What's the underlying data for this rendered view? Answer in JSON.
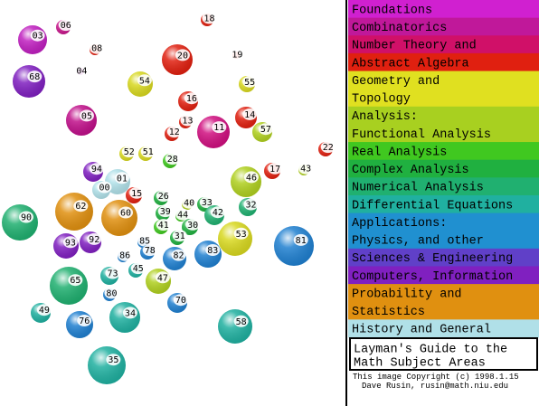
{
  "nodes": [
    {
      "label": "03",
      "color": "#c020c0"
    },
    {
      "label": "06",
      "color": "#c8188c"
    },
    {
      "label": "04",
      "color": "#d020d0"
    },
    {
      "label": "05",
      "color": "#c0108a"
    },
    {
      "label": "08",
      "color": "#e02010"
    },
    {
      "label": "18",
      "color": "#e02010"
    },
    {
      "label": "20",
      "color": "#e02010"
    },
    {
      "label": "19",
      "color": "#e02010"
    },
    {
      "label": "54",
      "color": "#d8d820"
    },
    {
      "label": "55",
      "color": "#d8d820"
    },
    {
      "label": "16",
      "color": "#e02010"
    },
    {
      "label": "13",
      "color": "#e02010"
    },
    {
      "label": "12",
      "color": "#e02010"
    },
    {
      "label": "11",
      "color": "#d01080"
    },
    {
      "label": "14",
      "color": "#e02010"
    },
    {
      "label": "57",
      "color": "#b0d020"
    },
    {
      "label": "22",
      "color": "#e02010"
    },
    {
      "label": "68",
      "color": "#8020c0"
    },
    {
      "label": "94",
      "color": "#8020c0"
    },
    {
      "label": "52",
      "color": "#d8d820"
    },
    {
      "label": "51",
      "color": "#d8d820"
    },
    {
      "label": "28",
      "color": "#40c820"
    },
    {
      "label": "01",
      "color": "#b0e0e8"
    },
    {
      "label": "00",
      "color": "#b0e0e8"
    },
    {
      "label": "15",
      "color": "#e02010"
    },
    {
      "label": "17",
      "color": "#e02010"
    },
    {
      "label": "43",
      "color": "#b0d020"
    },
    {
      "label": "46",
      "color": "#b0d020"
    },
    {
      "label": "26",
      "color": "#20b040"
    },
    {
      "label": "40",
      "color": "#b0d020"
    },
    {
      "label": "33",
      "color": "#20b040"
    },
    {
      "label": "32",
      "color": "#20b070"
    },
    {
      "label": "39",
      "color": "#20b040"
    },
    {
      "label": "44",
      "color": "#40c820"
    },
    {
      "label": "42",
      "color": "#20b070"
    },
    {
      "label": "62",
      "color": "#e09010"
    },
    {
      "label": "60",
      "color": "#e09010"
    },
    {
      "label": "90",
      "color": "#20b070"
    },
    {
      "label": "41",
      "color": "#40c820"
    },
    {
      "label": "30",
      "color": "#20b040"
    },
    {
      "label": "53",
      "color": "#d8d820"
    },
    {
      "label": "81",
      "color": "#2080d0"
    },
    {
      "label": "93",
      "color": "#8020c0"
    },
    {
      "label": "92",
      "color": "#8020c0"
    },
    {
      "label": "85",
      "color": "#2080d0"
    },
    {
      "label": "31",
      "color": "#20b040"
    },
    {
      "label": "78",
      "color": "#2080d0"
    },
    {
      "label": "86",
      "color": "#2080d0"
    },
    {
      "label": "83",
      "color": "#2080d0"
    },
    {
      "label": "82",
      "color": "#2080d0"
    },
    {
      "label": "45",
      "color": "#20b0a0"
    },
    {
      "label": "73",
      "color": "#20b0a0"
    },
    {
      "label": "65",
      "color": "#20b070"
    },
    {
      "label": "47",
      "color": "#b0d020"
    },
    {
      "label": "80",
      "color": "#2080d0"
    },
    {
      "label": "70",
      "color": "#2080d0"
    },
    {
      "label": "49",
      "color": "#20b0a0"
    },
    {
      "label": "34",
      "color": "#20b0a0"
    },
    {
      "label": "76",
      "color": "#2080d0"
    },
    {
      "label": "58",
      "color": "#20b0a0"
    },
    {
      "label": "35",
      "color": "#20b0a0"
    }
  ],
  "legend": [
    {
      "text": "Foundations",
      "color": "#d020d0"
    },
    {
      "text": "Combinatorics",
      "color": "#c0189a"
    },
    {
      "text": "Number Theory and",
      "color": "#d01068"
    },
    {
      "text": "Abstract Algebra",
      "color": "#e02010"
    },
    {
      "text": "Geometry and",
      "color": "#e0e020"
    },
    {
      "text": "Topology",
      "color": "#e0e020"
    },
    {
      "text": "Analysis:",
      "color": "#a8d020"
    },
    {
      "text": "Functional Analysis",
      "color": "#a8d020"
    },
    {
      "text": "Real Analysis",
      "color": "#40c820"
    },
    {
      "text": "Complex Analysis",
      "color": "#20b040"
    },
    {
      "text": "Numerical Analysis",
      "color": "#20b070"
    },
    {
      "text": "Differential Equations",
      "color": "#20b0a0"
    },
    {
      "text": "Applications:",
      "color": "#2090d0"
    },
    {
      "text": "Physics, and other",
      "color": "#2090d0"
    },
    {
      "text": "Sciences & Engineering",
      "color": "#6040c8"
    },
    {
      "text": "Computers, Information",
      "color": "#8020c0"
    },
    {
      "text": "Probability and",
      "color": "#e09010"
    },
    {
      "text": "Statistics",
      "color": "#e09010"
    },
    {
      "text": "History and General",
      "color": "#b0e0e8"
    }
  ],
  "title": {
    "lines": [
      "Layman's Guide to the",
      "Math Subject Areas"
    ]
  },
  "copyright": {
    "lines": [
      "This image Copyright (c) 1998.1.15",
      "Dave Rusin, rusin@math.niu.edu"
    ]
  }
}
